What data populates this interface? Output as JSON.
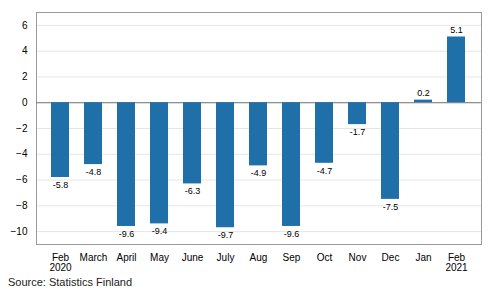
{
  "chart_data": {
    "type": "bar",
    "categories": [
      "Feb\n2020",
      "March",
      "April",
      "May",
      "June",
      "July",
      "Aug",
      "Sep",
      "Oct",
      "Nov",
      "Dec",
      "Jan",
      "Feb\n2021"
    ],
    "values": [
      -5.8,
      -4.8,
      -9.6,
      -9.4,
      -6.3,
      -9.7,
      -4.9,
      -9.6,
      -4.7,
      -1.7,
      -7.5,
      0.2,
      5.1
    ],
    "color": "#1f6fa8",
    "ylim": [
      -11,
      7
    ],
    "yticks": [
      -10,
      -8,
      -6,
      -4,
      -2,
      0,
      2,
      4,
      6
    ],
    "grid": true,
    "data_labels": true,
    "caption": "Source: Statistics Finland"
  }
}
